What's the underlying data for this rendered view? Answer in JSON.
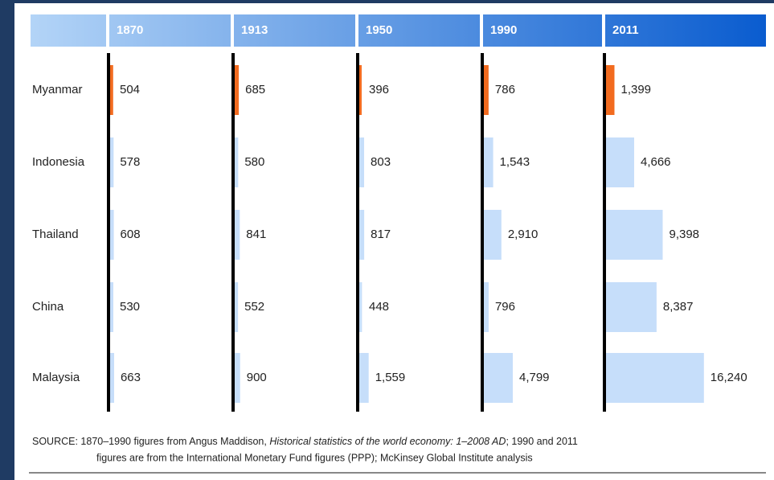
{
  "chart_data": {
    "type": "bar",
    "categories": [
      "Myanmar",
      "Indonesia",
      "Thailand",
      "China",
      "Malaysia"
    ],
    "xlim": [
      0,
      20000
    ],
    "series": [
      {
        "name": "1870",
        "color": "#c6defa",
        "colors": [
          "#f26b1f",
          "#c6defa",
          "#c6defa",
          "#c6defa",
          "#c6defa"
        ],
        "values": [
          504,
          578,
          608,
          530,
          663
        ],
        "value_labels": [
          "504",
          "578",
          "608",
          "530",
          "663"
        ]
      },
      {
        "name": "1913",
        "color": "#c6defa",
        "colors": [
          "#f26b1f",
          "#c6defa",
          "#c6defa",
          "#c6defa",
          "#c6defa"
        ],
        "values": [
          685,
          580,
          841,
          552,
          900
        ],
        "value_labels": [
          "685",
          "580",
          "841",
          "552",
          "900"
        ]
      },
      {
        "name": "1950",
        "color": "#c6defa",
        "colors": [
          "#f26b1f",
          "#c6defa",
          "#c6defa",
          "#c6defa",
          "#c6defa"
        ],
        "values": [
          396,
          803,
          817,
          448,
          1559
        ],
        "value_labels": [
          "396",
          "803",
          "817",
          "448",
          "1,559"
        ]
      },
      {
        "name": "1990",
        "color": "#c6defa",
        "colors": [
          "#f26b1f",
          "#c6defa",
          "#c6defa",
          "#c6defa",
          "#c6defa"
        ],
        "values": [
          786,
          1543,
          2910,
          796,
          4799
        ],
        "value_labels": [
          "786",
          "1,543",
          "2,910",
          "796",
          "4,799"
        ]
      },
      {
        "name": "2011",
        "color": "#c6defa",
        "colors": [
          "#f26b1f",
          "#c6defa",
          "#c6defa",
          "#c6defa",
          "#c6defa"
        ],
        "values": [
          1399,
          4666,
          9398,
          8387,
          16240
        ],
        "value_labels": [
          "1,399",
          "4,666",
          "9,398",
          "8,387",
          "16,240"
        ]
      }
    ],
    "source": {
      "before": "SOURCE: 1870–1990 figures from Angus Maddison, ",
      "title": "Historical statistics of the world economy: 1–2008 AD",
      "after": "; 1990 and 2011",
      "line2": "figures are from the International Monetary Fund figures (PPP); McKinsey Global Institute analysis"
    }
  }
}
